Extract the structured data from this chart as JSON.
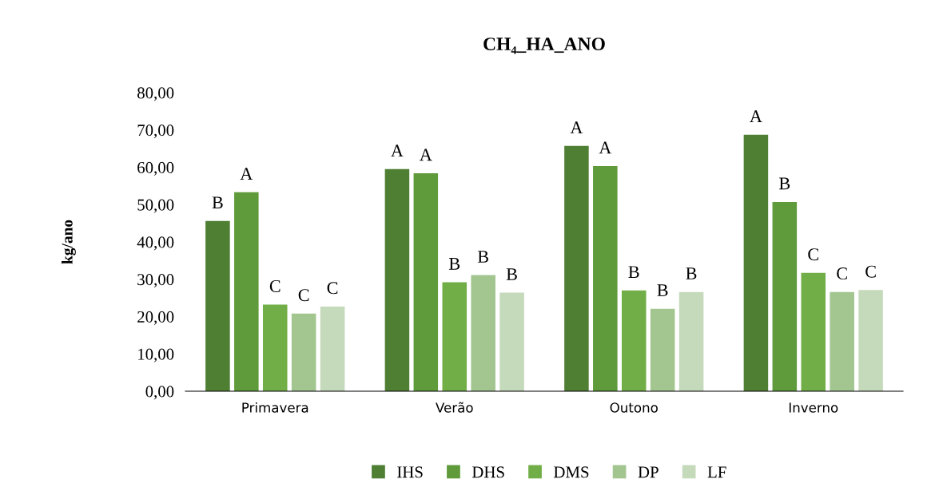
{
  "chart_data": {
    "type": "bar",
    "title": "CH₄_HA_ANO",
    "ylabel": "kg/ano",
    "categories": [
      "Primavera",
      "Verão",
      "Outono",
      "Inverno"
    ],
    "series": [
      {
        "name": "IHS",
        "color": "#4e7f33",
        "values": [
          45.6,
          59.5,
          65.7,
          68.7
        ],
        "value_labels": [
          "B",
          "A",
          "A",
          "A"
        ]
      },
      {
        "name": "DHS",
        "color": "#5f9a3b",
        "values": [
          53.3,
          58.4,
          60.3,
          50.7
        ],
        "value_labels": [
          "A",
          "A",
          "A",
          "B"
        ]
      },
      {
        "name": "DMS",
        "color": "#72ae48",
        "values": [
          23.2,
          29.2,
          27.0,
          31.7
        ],
        "value_labels": [
          "C",
          "B",
          "B",
          "C"
        ]
      },
      {
        "name": "DP",
        "color": "#a3c590",
        "values": [
          20.8,
          31.1,
          22.1,
          26.6
        ],
        "value_labels": [
          "C",
          "B",
          "B",
          "C"
        ]
      },
      {
        "name": "LF",
        "color": "#c5d9bb",
        "values": [
          22.7,
          26.4,
          26.6,
          27.1
        ],
        "value_labels": [
          "C",
          "B",
          "B",
          "C"
        ]
      }
    ],
    "ylim": [
      0,
      80
    ],
    "yticks": [
      {
        "value": 0,
        "label": "0,00"
      },
      {
        "value": 10,
        "label": "10,00"
      },
      {
        "value": 20,
        "label": "20,00"
      },
      {
        "value": 30,
        "label": "30,00"
      },
      {
        "value": 40,
        "label": "40,00"
      },
      {
        "value": 50,
        "label": "50,00"
      },
      {
        "value": 60,
        "label": "60,00"
      },
      {
        "value": 70,
        "label": "70,00"
      },
      {
        "value": 80,
        "label": "80,00"
      }
    ],
    "grid": false,
    "legend": "bottom",
    "marker": "square"
  }
}
